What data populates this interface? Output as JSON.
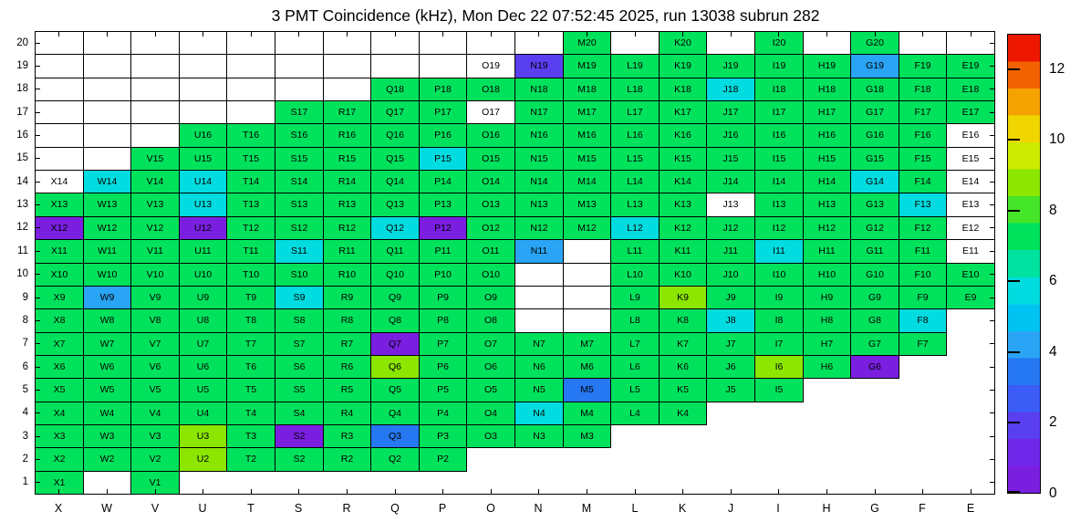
{
  "title": "3 PMT Coincidence (kHz), Mon Dec 22 07:52:45 2025, run 13038 subrun 282",
  "chart_data": {
    "type": "heatmap",
    "title": "3 PMT Coincidence (kHz), Mon Dec 22 07:52:45 2025, run 13038 subrun 282",
    "units": "kHz",
    "x_categories": [
      "X",
      "W",
      "V",
      "U",
      "T",
      "S",
      "R",
      "Q",
      "P",
      "O",
      "N",
      "M",
      "L",
      "K",
      "J",
      "I",
      "H",
      "G",
      "F",
      "E"
    ],
    "y_categories": [
      20,
      19,
      18,
      17,
      16,
      15,
      14,
      13,
      12,
      11,
      10,
      9,
      8,
      7,
      6,
      5,
      4,
      3,
      2,
      1
    ],
    "grid_codes_by_row": [
      "eeeeeeeeeeegegegegee",
      "eeeeeeeeeongggggglgg",
      "eeeeeeegggggggcggggg",
      "eeeeeggggogggggggggg",
      "eeeggggggggggggggggo",
      "eeggggggcggggggggggo",
      "ocgcgggggggggggggcgo",
      "gggcggggggggggogggco",
      "vggvgggcvgggcggggggo",
      "gggggcgggglegggcgggo",
      "ggggggggggeegggggggg",
      "glgggcggggeegygggggg",
      "ggggggggggeeggcgggc.",
      "gggggggvggggggggggg.",
      "gggggggygggggggygv..",
      "gggggggggggbgggg....",
      "ggggggggggcggg......",
      "gggygvgbgggg........",
      "gggyggggg...........",
      "g.g................."
    ],
    "code_legend": {
      "g": {
        "approx_value_khz": 6.5,
        "color": "#00e25c",
        "note": "green"
      },
      "y": {
        "approx_value_khz": 8.5,
        "color": "#8ce600",
        "note": "yellow-green"
      },
      "c": {
        "approx_value_khz": 5.0,
        "color": "#00dcdf",
        "note": "cyan"
      },
      "l": {
        "approx_value_khz": 4.2,
        "color": "#2aa4f4",
        "note": "light blue"
      },
      "b": {
        "approx_value_khz": 3.0,
        "color": "#2577f2",
        "note": "blue"
      },
      "n": {
        "approx_value_khz": 1.8,
        "color": "#5a3ff0",
        "note": "blue-violet"
      },
      "v": {
        "approx_value_khz": 0.8,
        "color": "#7a1fe0",
        "note": "violet"
      },
      "o": {
        "approx_value_khz": null,
        "color": "#ffffff",
        "note": "labeled cell, no value"
      },
      "e": {
        "approx_value_khz": null,
        "color": "#ffffff",
        "note": "empty outlined cell"
      },
      ".": {
        "approx_value_khz": null,
        "color": null,
        "note": "no cell drawn"
      }
    },
    "label_overrides": {
      "S3": "S2"
    },
    "colorbar": {
      "min": 0,
      "max": 13,
      "tick_values": [
        0,
        2,
        4,
        6,
        8,
        10,
        12
      ],
      "tick_labels": [
        "0",
        "2",
        "4",
        "6",
        "8",
        "10",
        "12"
      ],
      "bands_bottom_to_top": [
        "#7a1fe0",
        "#6f28ea",
        "#5a3ff0",
        "#3b5cf5",
        "#2577f2",
        "#2aa4f4",
        "#00c3f2",
        "#00dcdf",
        "#00e2a0",
        "#00e25c",
        "#45e62a",
        "#8ce600",
        "#cdeb00",
        "#f0d500",
        "#f5a300",
        "#f26200",
        "#ee1800"
      ],
      "position": "right"
    },
    "grid_on": true,
    "legend_position": "right"
  }
}
